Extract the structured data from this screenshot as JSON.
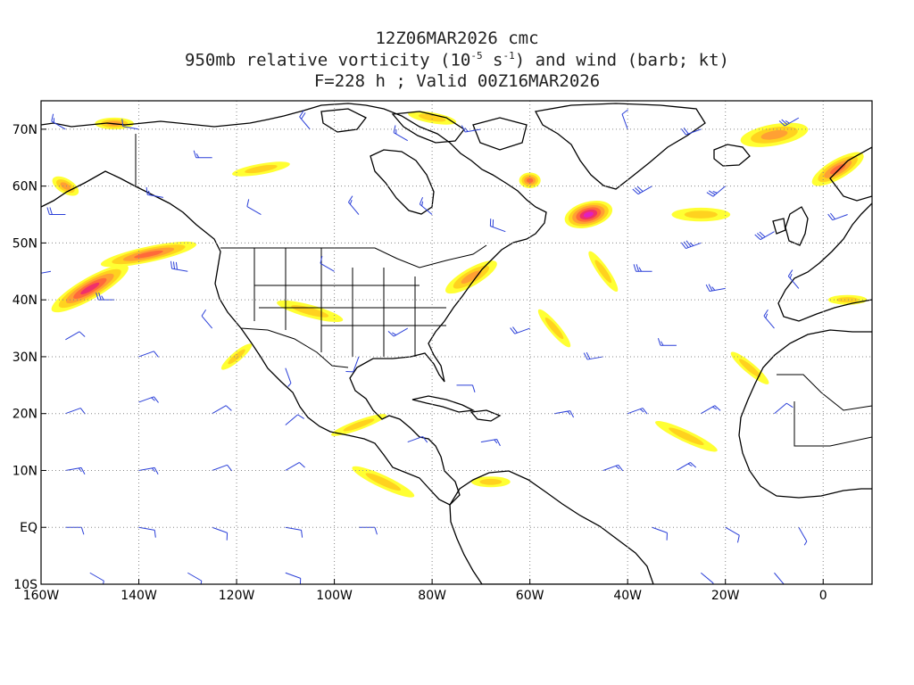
{
  "title": {
    "line1": "12Z06MAR2026 cmc",
    "line2_pre": "950mb relative vorticity (10",
    "line2_exp1": "-5",
    "line2_mid": " s",
    "line2_exp2": "-1",
    "line2_post": ") and wind (barb; kt)",
    "line3": "F=228 h ; Valid 00Z16MAR2026"
  },
  "map": {
    "projection": "cylindrical",
    "lon_range": [
      -160,
      10
    ],
    "lat_range": [
      -10,
      75
    ],
    "lat_labels": [
      "70N",
      "60N",
      "50N",
      "40N",
      "30N",
      "20N",
      "10N",
      "EQ",
      "10S"
    ],
    "lat_values": [
      70,
      60,
      50,
      40,
      30,
      20,
      10,
      0,
      -10
    ],
    "lon_labels": [
      "160W",
      "140W",
      "120W",
      "100W",
      "80W",
      "60W",
      "40W",
      "20W",
      "0"
    ],
    "lon_values": [
      -160,
      -140,
      -120,
      -100,
      -80,
      -60,
      -40,
      -20,
      0
    ],
    "grid": "dotted",
    "shading_colors": [
      "#ffff33",
      "#ffd21f",
      "#ffa033",
      "#ff6a3a",
      "#f0306a",
      "#e020c0"
    ],
    "barb_color": "#2a3fd8",
    "coast_color": "#000000"
  },
  "vorticity_features": [
    {
      "lon": -150,
      "lat": 42,
      "rx": 9,
      "ry": 2.2,
      "rot": -30,
      "level": 4
    },
    {
      "lon": -138,
      "lat": 48,
      "rx": 10,
      "ry": 1.6,
      "rot": -12,
      "level": 3
    },
    {
      "lon": -48,
      "lat": 55,
      "rx": 5,
      "ry": 2.6,
      "rot": -15,
      "level": 5
    },
    {
      "lon": -45,
      "lat": 45,
      "rx": 5,
      "ry": 1.1,
      "rot": 55,
      "level": 1
    },
    {
      "lon": -55,
      "lat": 35,
      "rx": 5,
      "ry": 1.1,
      "rot": 50,
      "level": 1
    },
    {
      "lon": 3,
      "lat": 63,
      "rx": 6,
      "ry": 2.0,
      "rot": -30,
      "level": 3
    },
    {
      "lon": -10,
      "lat": 69,
      "rx": 7,
      "ry": 2.2,
      "rot": -10,
      "level": 2
    },
    {
      "lon": -60,
      "lat": 61,
      "rx": 2.2,
      "ry": 1.6,
      "rot": 0,
      "level": 3
    },
    {
      "lon": -72,
      "lat": 44,
      "rx": 6,
      "ry": 1.8,
      "rot": -30,
      "level": 2
    },
    {
      "lon": -145,
      "lat": 71,
      "rx": 4,
      "ry": 1.2,
      "rot": 0,
      "level": 2
    },
    {
      "lon": -105,
      "lat": 38,
      "rx": 7,
      "ry": 1.3,
      "rot": 15,
      "level": 1
    },
    {
      "lon": -120,
      "lat": 30,
      "rx": 4,
      "ry": 1.0,
      "rot": -40,
      "level": 1
    },
    {
      "lon": -15,
      "lat": 28,
      "rx": 5,
      "ry": 1.1,
      "rot": 40,
      "level": 1
    },
    {
      "lon": -28,
      "lat": 16,
      "rx": 7,
      "ry": 1.2,
      "rot": 25,
      "level": 1
    },
    {
      "lon": -90,
      "lat": 8,
      "rx": 7,
      "ry": 1.3,
      "rot": 25,
      "level": 1
    },
    {
      "lon": -68,
      "lat": 8,
      "rx": 4,
      "ry": 1.1,
      "rot": 0,
      "level": 1
    },
    {
      "lon": -25,
      "lat": 55,
      "rx": 6,
      "ry": 1.4,
      "rot": 0,
      "level": 1
    },
    {
      "lon": -115,
      "lat": 63,
      "rx": 6,
      "ry": 1.1,
      "rot": -10,
      "level": 1
    },
    {
      "lon": -95,
      "lat": 18,
      "rx": 6,
      "ry": 1.0,
      "rot": -20,
      "level": 1
    },
    {
      "lon": -80,
      "lat": 72,
      "rx": 5,
      "ry": 1.1,
      "rot": 10,
      "level": 1
    },
    {
      "lon": 5,
      "lat": 40,
      "rx": 4,
      "ry": 1.0,
      "rot": 0,
      "level": 1
    },
    {
      "lon": -155,
      "lat": 60,
      "rx": 3,
      "ry": 1.5,
      "rot": 30,
      "level": 2
    }
  ],
  "barbs": [
    {
      "lon": -155,
      "lat": 70,
      "dir": 300,
      "spd": 15
    },
    {
      "lon": -140,
      "lat": 70,
      "dir": 280,
      "spd": 10
    },
    {
      "lon": -125,
      "lat": 65,
      "dir": 270,
      "spd": 15
    },
    {
      "lon": -105,
      "lat": 70,
      "dir": 320,
      "spd": 20
    },
    {
      "lon": -85,
      "lat": 68,
      "dir": 300,
      "spd": 15
    },
    {
      "lon": -70,
      "lat": 70,
      "dir": 260,
      "spd": 15
    },
    {
      "lon": -40,
      "lat": 70,
      "dir": 340,
      "spd": 10
    },
    {
      "lon": -25,
      "lat": 70,
      "dir": 250,
      "spd": 20
    },
    {
      "lon": -5,
      "lat": 72,
      "dir": 240,
      "spd": 25
    },
    {
      "lon": 5,
      "lat": 55,
      "dir": 250,
      "spd": 20
    },
    {
      "lon": -155,
      "lat": 55,
      "dir": 270,
      "spd": 20
    },
    {
      "lon": -135,
      "lat": 58,
      "dir": 280,
      "spd": 15
    },
    {
      "lon": -115,
      "lat": 55,
      "dir": 300,
      "spd": 10
    },
    {
      "lon": -95,
      "lat": 55,
      "dir": 320,
      "spd": 15
    },
    {
      "lon": -80,
      "lat": 55,
      "dir": 310,
      "spd": 15
    },
    {
      "lon": -65,
      "lat": 52,
      "dir": 290,
      "spd": 20
    },
    {
      "lon": -35,
      "lat": 60,
      "dir": 240,
      "spd": 30
    },
    {
      "lon": -20,
      "lat": 60,
      "dir": 230,
      "spd": 25
    },
    {
      "lon": -25,
      "lat": 50,
      "dir": 250,
      "spd": 35
    },
    {
      "lon": -10,
      "lat": 52,
      "dir": 240,
      "spd": 30
    },
    {
      "lon": -158,
      "lat": 45,
      "dir": 260,
      "spd": 30
    },
    {
      "lon": -145,
      "lat": 40,
      "dir": 270,
      "spd": 25
    },
    {
      "lon": -130,
      "lat": 45,
      "dir": 280,
      "spd": 30
    },
    {
      "lon": -35,
      "lat": 45,
      "dir": 270,
      "spd": 25
    },
    {
      "lon": -20,
      "lat": 42,
      "dir": 260,
      "spd": 25
    },
    {
      "lon": -5,
      "lat": 42,
      "dir": 320,
      "spd": 15
    },
    {
      "lon": -155,
      "lat": 33,
      "dir": 60,
      "spd": 10
    },
    {
      "lon": -140,
      "lat": 30,
      "dir": 70,
      "spd": 10
    },
    {
      "lon": -125,
      "lat": 35,
      "dir": 320,
      "spd": 10
    },
    {
      "lon": -60,
      "lat": 35,
      "dir": 250,
      "spd": 20
    },
    {
      "lon": -45,
      "lat": 30,
      "dir": 260,
      "spd": 20
    },
    {
      "lon": -30,
      "lat": 32,
      "dir": 270,
      "spd": 15
    },
    {
      "lon": -10,
      "lat": 35,
      "dir": 320,
      "spd": 15
    },
    {
      "lon": -155,
      "lat": 20,
      "dir": 70,
      "spd": 10
    },
    {
      "lon": -140,
      "lat": 22,
      "dir": 70,
      "spd": 15
    },
    {
      "lon": -125,
      "lat": 20,
      "dir": 60,
      "spd": 10
    },
    {
      "lon": -110,
      "lat": 18,
      "dir": 50,
      "spd": 10
    },
    {
      "lon": -55,
      "lat": 20,
      "dir": 80,
      "spd": 15
    },
    {
      "lon": -40,
      "lat": 20,
      "dir": 70,
      "spd": 15
    },
    {
      "lon": -25,
      "lat": 20,
      "dir": 60,
      "spd": 15
    },
    {
      "lon": -10,
      "lat": 20,
      "dir": 50,
      "spd": 10
    },
    {
      "lon": -155,
      "lat": 10,
      "dir": 80,
      "spd": 15
    },
    {
      "lon": -140,
      "lat": 10,
      "dir": 80,
      "spd": 15
    },
    {
      "lon": -125,
      "lat": 10,
      "dir": 70,
      "spd": 10
    },
    {
      "lon": -110,
      "lat": 10,
      "dir": 60,
      "spd": 10
    },
    {
      "lon": -45,
      "lat": 10,
      "dir": 70,
      "spd": 15
    },
    {
      "lon": -30,
      "lat": 10,
      "dir": 60,
      "spd": 15
    },
    {
      "lon": -155,
      "lat": 0,
      "dir": 90,
      "spd": 10
    },
    {
      "lon": -140,
      "lat": 0,
      "dir": 100,
      "spd": 10
    },
    {
      "lon": -125,
      "lat": 0,
      "dir": 110,
      "spd": 10
    },
    {
      "lon": -110,
      "lat": 0,
      "dir": 100,
      "spd": 10
    },
    {
      "lon": -95,
      "lat": 0,
      "dir": 90,
      "spd": 10
    },
    {
      "lon": -35,
      "lat": 0,
      "dir": 110,
      "spd": 10
    },
    {
      "lon": -20,
      "lat": 0,
      "dir": 120,
      "spd": 10
    },
    {
      "lon": -5,
      "lat": 0,
      "dir": 150,
      "spd": 5
    },
    {
      "lon": -150,
      "lat": -8,
      "dir": 120,
      "spd": 10
    },
    {
      "lon": -130,
      "lat": -8,
      "dir": 120,
      "spd": 10
    },
    {
      "lon": -110,
      "lat": -8,
      "dir": 110,
      "spd": 10
    },
    {
      "lon": -25,
      "lat": -8,
      "dir": 130,
      "spd": 10
    },
    {
      "lon": -10,
      "lat": -8,
      "dir": 140,
      "spd": 10
    },
    {
      "lon": -95,
      "lat": 30,
      "dir": 200,
      "spd": 10
    },
    {
      "lon": -85,
      "lat": 35,
      "dir": 240,
      "spd": 15
    },
    {
      "lon": -100,
      "lat": 45,
      "dir": 300,
      "spd": 10
    },
    {
      "lon": -110,
      "lat": 28,
      "dir": 160,
      "spd": 5
    },
    {
      "lon": -75,
      "lat": 25,
      "dir": 90,
      "spd": 10
    },
    {
      "lon": -70,
      "lat": 15,
      "dir": 80,
      "spd": 15
    },
    {
      "lon": -85,
      "lat": 15,
      "dir": 70,
      "spd": 10
    }
  ]
}
